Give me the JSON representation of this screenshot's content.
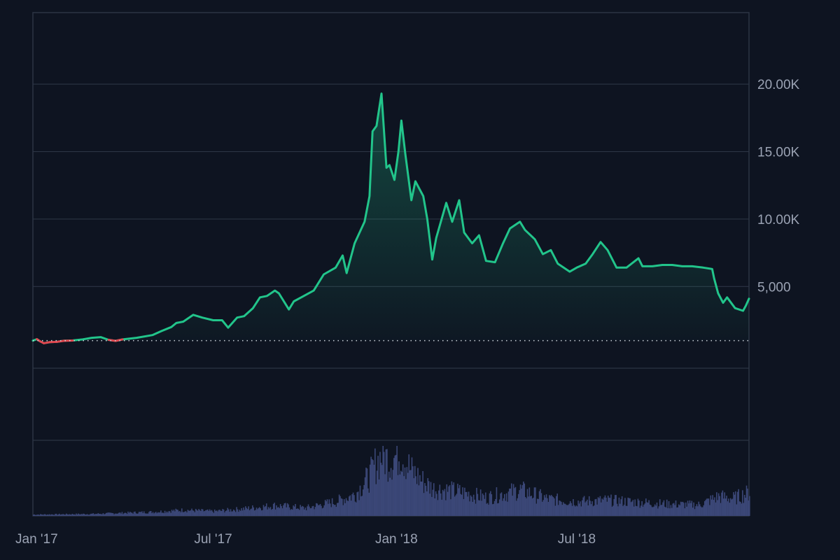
{
  "colors": {
    "background": "#0e1421",
    "grid": "#2c3444",
    "price_up": "#22c58b",
    "price_down": "#e0464f",
    "baseline_dots": "#cfd4dc",
    "volume": "#3b4777",
    "tick_text": "#9ba3b4"
  },
  "chart_data": {
    "type": "line",
    "title": "",
    "xlabel": "",
    "ylabel": "",
    "x_ticks": [
      {
        "date": "2017-01-01",
        "label": "Jan '17"
      },
      {
        "date": "2017-07-01",
        "label": "Jul '17"
      },
      {
        "date": "2018-01-01",
        "label": "Jan '18"
      },
      {
        "date": "2018-07-01",
        "label": "Jul '18"
      }
    ],
    "y_ticks": [
      {
        "value": 5000,
        "label": "5,000"
      },
      {
        "value": 10000,
        "label": "10.00K"
      },
      {
        "value": 15000,
        "label": "15.00K"
      },
      {
        "value": 20000,
        "label": "20.00K"
      }
    ],
    "ylim": [
      -1000,
      25300
    ],
    "xlim": [
      "2017-01-01",
      "2018-12-21"
    ],
    "baseline": 990,
    "grid": true,
    "price": [
      [
        "2017-01-01",
        990
      ],
      [
        "2017-01-05",
        1100
      ],
      [
        "2017-01-08",
        950
      ],
      [
        "2017-01-12",
        800
      ],
      [
        "2017-01-18",
        880
      ],
      [
        "2017-01-25",
        900
      ],
      [
        "2017-02-01",
        980
      ],
      [
        "2017-02-10",
        1000
      ],
      [
        "2017-02-20",
        1080
      ],
      [
        "2017-03-01",
        1200
      ],
      [
        "2017-03-10",
        1250
      ],
      [
        "2017-03-18",
        1050
      ],
      [
        "2017-03-25",
        970
      ],
      [
        "2017-04-01",
        1080
      ],
      [
        "2017-04-15",
        1200
      ],
      [
        "2017-05-01",
        1400
      ],
      [
        "2017-05-10",
        1700
      ],
      [
        "2017-05-20",
        2000
      ],
      [
        "2017-05-25",
        2300
      ],
      [
        "2017-06-01",
        2400
      ],
      [
        "2017-06-11",
        2900
      ],
      [
        "2017-06-20",
        2700
      ],
      [
        "2017-07-01",
        2500
      ],
      [
        "2017-07-10",
        2500
      ],
      [
        "2017-07-16",
        1950
      ],
      [
        "2017-07-25",
        2700
      ],
      [
        "2017-08-01",
        2800
      ],
      [
        "2017-08-10",
        3400
      ],
      [
        "2017-08-17",
        4200
      ],
      [
        "2017-08-24",
        4300
      ],
      [
        "2017-09-01",
        4700
      ],
      [
        "2017-09-05",
        4500
      ],
      [
        "2017-09-15",
        3300
      ],
      [
        "2017-09-20",
        3900
      ],
      [
        "2017-09-30",
        4300
      ],
      [
        "2017-10-10",
        4700
      ],
      [
        "2017-10-20",
        5900
      ],
      [
        "2017-11-01",
        6400
      ],
      [
        "2017-11-08",
        7300
      ],
      [
        "2017-11-12",
        6000
      ],
      [
        "2017-11-20",
        8200
      ],
      [
        "2017-11-30",
        9800
      ],
      [
        "2017-12-05",
        11700
      ],
      [
        "2017-12-08",
        16500
      ],
      [
        "2017-12-12",
        16900
      ],
      [
        "2017-12-17",
        19300
      ],
      [
        "2017-12-22",
        13800
      ],
      [
        "2017-12-25",
        14000
      ],
      [
        "2017-12-30",
        12900
      ],
      [
        "2018-01-03",
        15000
      ],
      [
        "2018-01-06",
        17300
      ],
      [
        "2018-01-10",
        14800
      ],
      [
        "2018-01-16",
        11400
      ],
      [
        "2018-01-20",
        12800
      ],
      [
        "2018-01-28",
        11700
      ],
      [
        "2018-02-01",
        10000
      ],
      [
        "2018-02-06",
        7000
      ],
      [
        "2018-02-10",
        8600
      ],
      [
        "2018-02-20",
        11200
      ],
      [
        "2018-02-26",
        9800
      ],
      [
        "2018-03-05",
        11400
      ],
      [
        "2018-03-10",
        9000
      ],
      [
        "2018-03-18",
        8200
      ],
      [
        "2018-03-25",
        8800
      ],
      [
        "2018-04-01",
        6900
      ],
      [
        "2018-04-10",
        6800
      ],
      [
        "2018-04-18",
        8200
      ],
      [
        "2018-04-25",
        9300
      ],
      [
        "2018-05-05",
        9800
      ],
      [
        "2018-05-10",
        9200
      ],
      [
        "2018-05-20",
        8500
      ],
      [
        "2018-05-28",
        7400
      ],
      [
        "2018-06-05",
        7700
      ],
      [
        "2018-06-12",
        6700
      ],
      [
        "2018-06-24",
        6100
      ],
      [
        "2018-07-01",
        6400
      ],
      [
        "2018-07-10",
        6700
      ],
      [
        "2018-07-17",
        7400
      ],
      [
        "2018-07-25",
        8300
      ],
      [
        "2018-08-01",
        7700
      ],
      [
        "2018-08-10",
        6400
      ],
      [
        "2018-08-20",
        6400
      ],
      [
        "2018-09-01",
        7100
      ],
      [
        "2018-09-05",
        6500
      ],
      [
        "2018-09-15",
        6500
      ],
      [
        "2018-09-25",
        6600
      ],
      [
        "2018-10-05",
        6600
      ],
      [
        "2018-10-15",
        6500
      ],
      [
        "2018-10-25",
        6500
      ],
      [
        "2018-11-05",
        6400
      ],
      [
        "2018-11-14",
        6300
      ],
      [
        "2018-11-16",
        5600
      ],
      [
        "2018-11-20",
        4500
      ],
      [
        "2018-11-25",
        3800
      ],
      [
        "2018-11-29",
        4200
      ],
      [
        "2018-12-07",
        3400
      ],
      [
        "2018-12-15",
        3200
      ],
      [
        "2018-12-18",
        3600
      ],
      [
        "2018-12-21",
        4100
      ]
    ],
    "volume_relative": [
      [
        "2017-01-01",
        0.02
      ],
      [
        "2017-03-01",
        0.03
      ],
      [
        "2017-05-01",
        0.06
      ],
      [
        "2017-06-01",
        0.09
      ],
      [
        "2017-07-01",
        0.07
      ],
      [
        "2017-08-01",
        0.11
      ],
      [
        "2017-09-01",
        0.16
      ],
      [
        "2017-10-01",
        0.12
      ],
      [
        "2017-11-01",
        0.22
      ],
      [
        "2017-11-20",
        0.33
      ],
      [
        "2017-12-05",
        0.62
      ],
      [
        "2017-12-10",
        0.78
      ],
      [
        "2017-12-17",
        0.94
      ],
      [
        "2017-12-25",
        0.85
      ],
      [
        "2018-01-05",
        0.98
      ],
      [
        "2018-01-15",
        0.7
      ],
      [
        "2018-01-28",
        0.52
      ],
      [
        "2018-02-06",
        0.42
      ],
      [
        "2018-03-01",
        0.38
      ],
      [
        "2018-04-01",
        0.28
      ],
      [
        "2018-05-05",
        0.4
      ],
      [
        "2018-06-01",
        0.26
      ],
      [
        "2018-07-01",
        0.22
      ],
      [
        "2018-08-01",
        0.24
      ],
      [
        "2018-09-01",
        0.21
      ],
      [
        "2018-10-01",
        0.18
      ],
      [
        "2018-11-01",
        0.17
      ],
      [
        "2018-11-20",
        0.3
      ],
      [
        "2018-12-05",
        0.27
      ],
      [
        "2018-12-21",
        0.36
      ]
    ]
  }
}
